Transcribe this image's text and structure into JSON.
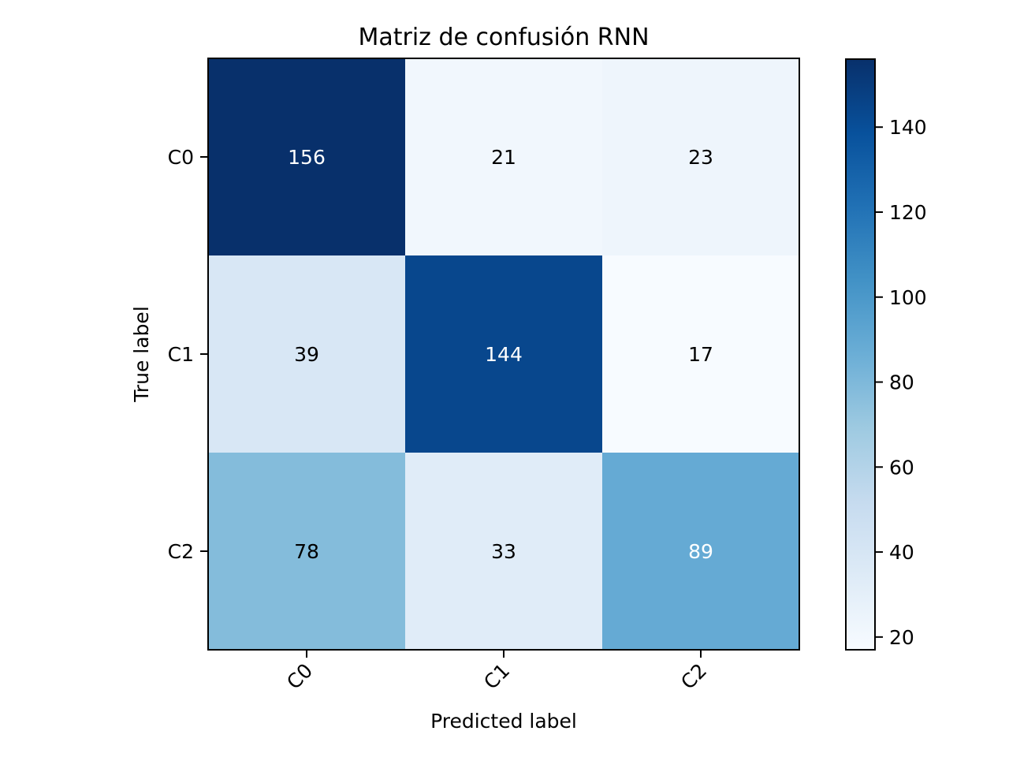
{
  "chart_data": {
    "type": "heatmap",
    "title": "Matriz de confusión RNN",
    "xlabel": "Predicted label",
    "ylabel": "True label",
    "x_categories": [
      "C0",
      "C1",
      "C2"
    ],
    "y_categories": [
      "C0",
      "C1",
      "C2"
    ],
    "values": [
      [
        156,
        21,
        23
      ],
      [
        39,
        144,
        17
      ],
      [
        78,
        33,
        89
      ]
    ],
    "colormap": "Blues",
    "colorbar": {
      "min": 17,
      "max": 156,
      "ticks": [
        20,
        40,
        60,
        80,
        100,
        120,
        140
      ]
    },
    "grid": false
  }
}
